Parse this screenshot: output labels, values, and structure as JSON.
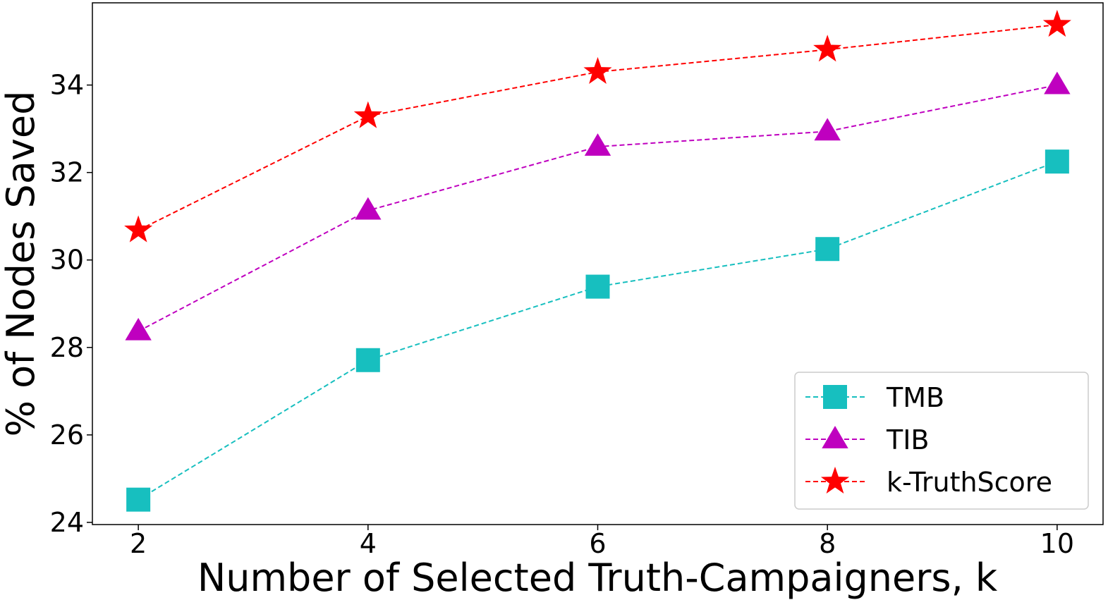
{
  "chart_data": {
    "type": "line",
    "xlabel": "Number of Selected Truth-Campaigners, k",
    "ylabel": "% of Nodes Saved",
    "x": [
      2,
      4,
      6,
      8,
      10
    ],
    "xticks": [
      "2",
      "4",
      "6",
      "8",
      "10"
    ],
    "yticks": [
      "24",
      "26",
      "28",
      "30",
      "32",
      "34"
    ],
    "xlim": [
      1.6,
      10.4
    ],
    "ylim": [
      23.95,
      35.88
    ],
    "grid": false,
    "legend_position": "lower-right",
    "series": [
      {
        "name": "TMB",
        "values": [
          24.52,
          27.71,
          29.39,
          30.25,
          32.25
        ],
        "color": "#17bfbf",
        "marker": "square"
      },
      {
        "name": "TIB",
        "values": [
          28.37,
          31.13,
          32.59,
          32.94,
          34.0
        ],
        "color": "#bf00bf",
        "marker": "triangle"
      },
      {
        "name": "k-TruthScore",
        "values": [
          30.68,
          33.29,
          34.3,
          34.81,
          35.38
        ],
        "color": "#ff0000",
        "marker": "star"
      }
    ]
  }
}
